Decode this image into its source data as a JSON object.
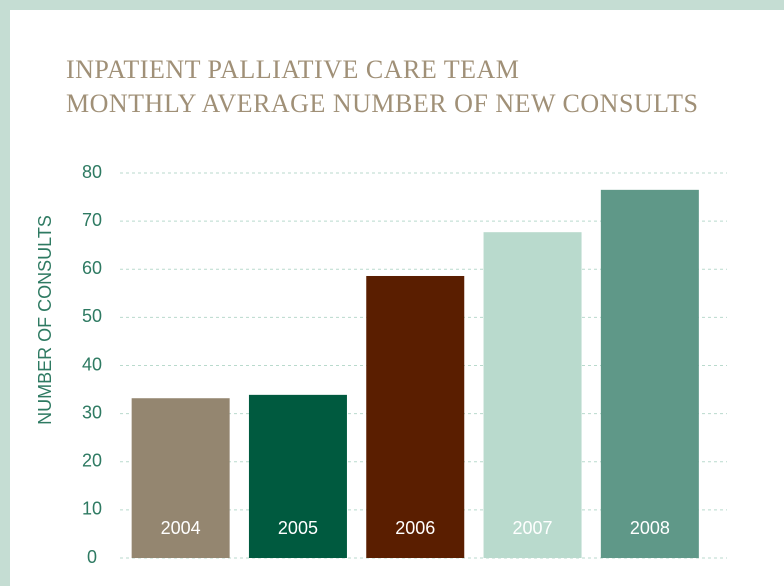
{
  "chart_data": {
    "type": "bar",
    "title": [
      "INPATIENT PALLIATIVE CARE TEAM",
      "MONTHLY AVERAGE NUMBER OF NEW CONSULTS"
    ],
    "y_label": "NUMBER OF CONSULTS",
    "categories": [
      "2004",
      "2005",
      "2006",
      "2007",
      "2008"
    ],
    "values": [
      33.2,
      33.9,
      58.6,
      67.7,
      76.5
    ],
    "colors": [
      "#948670",
      "#005a3f",
      "#5a1e00",
      "#b9dacd",
      "#5f9888"
    ],
    "ylim": [
      0,
      80
    ],
    "yticks": [
      0,
      10,
      20,
      30,
      40,
      50,
      60,
      70,
      80
    ],
    "grid": true
  }
}
